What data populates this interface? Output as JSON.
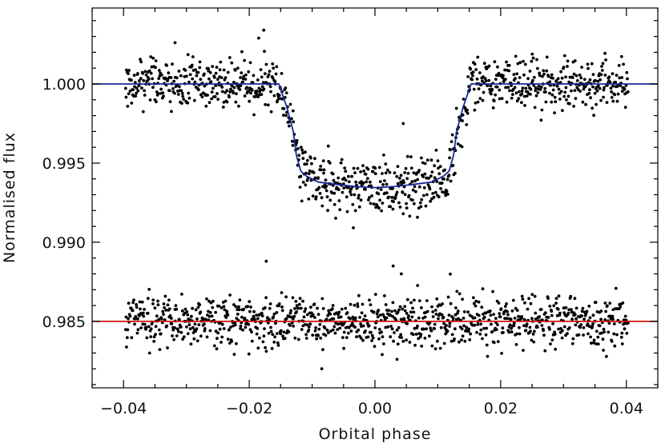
{
  "chart_data": {
    "type": "scatter",
    "xlabel": "Orbital phase",
    "ylabel": "Normalised flux",
    "xlim": [
      -0.045,
      0.045
    ],
    "ylim": [
      0.9808,
      1.0048
    ],
    "x_ticks": [
      -0.04,
      -0.02,
      0.0,
      0.02,
      0.04
    ],
    "x_tick_labels": [
      "−0.04",
      "−0.02",
      "0.00",
      "0.02",
      "0.04"
    ],
    "y_ticks": [
      0.985,
      0.99,
      0.995,
      1.0
    ],
    "y_tick_labels": [
      "0.985",
      "0.990",
      "0.995",
      "1.000"
    ],
    "grid": false,
    "data_range": [
      -0.0397,
      0.0403
    ],
    "series": [
      {
        "role": "light-curve",
        "kind": "points",
        "color": "#000000",
        "scatter_sigma": 0.0008,
        "point_count": 1000
      },
      {
        "role": "transit-model",
        "kind": "line",
        "color": "#1a2a9a",
        "baseline": 1.0,
        "depth_center": 0.99345,
        "transit_t14": 0.0295,
        "ingress_duration": 0.0035,
        "x": [
          -0.045,
          -0.0153,
          -0.014,
          -0.013,
          -0.0125,
          -0.0118,
          -0.011,
          -0.009,
          -0.006,
          -0.003,
          0.0,
          0.003,
          0.006,
          0.009,
          0.011,
          0.0118,
          0.0125,
          0.013,
          0.014,
          0.0153,
          0.045
        ],
        "y": [
          1.0,
          1.0,
          0.9985,
          0.997,
          0.9955,
          0.9945,
          0.9942,
          0.9938,
          0.99365,
          0.99352,
          0.99345,
          0.99352,
          0.99365,
          0.9938,
          0.9942,
          0.9945,
          0.9955,
          0.997,
          0.9985,
          1.0,
          1.0
        ]
      },
      {
        "role": "residuals",
        "kind": "points",
        "color": "#000000",
        "offset": 0.985,
        "scatter_sigma": 0.0008,
        "point_count": 1000
      },
      {
        "role": "residual-zero-line",
        "kind": "line",
        "color": "#d01010",
        "y": 0.985
      }
    ],
    "outliers": [
      {
        "x": -0.0177,
        "y": 1.0034
      },
      {
        "x": -0.0185,
        "y": 1.0029
      },
      {
        "x": 0.0045,
        "y": 0.9975
      },
      {
        "x": 0.0045,
        "y": 0.9918
      },
      {
        "x": -0.0173,
        "y": 0.9888
      },
      {
        "x": 0.0029,
        "y": 0.9885
      },
      {
        "x": 0.0042,
        "y": 0.988
      },
      {
        "x": 0.0035,
        "y": 0.9826
      }
    ]
  }
}
